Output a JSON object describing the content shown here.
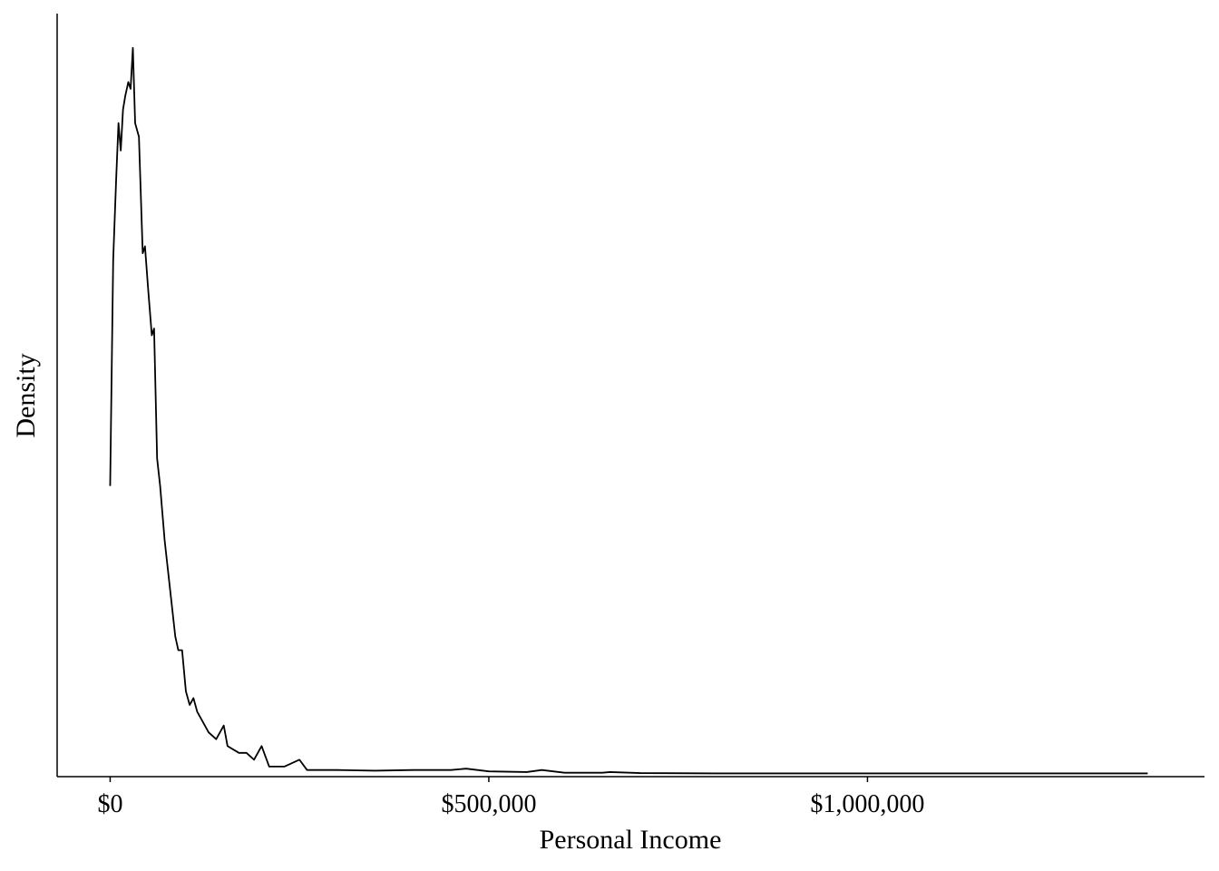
{
  "chart_data": {
    "type": "line",
    "title": "",
    "xlabel": "Personal Income",
    "ylabel": "Density",
    "xlim": [
      -70000,
      1445000
    ],
    "ylim": [
      -4.7e-08,
      1.11e-05
    ],
    "x_ticks": [
      {
        "value": 0,
        "label": "$0"
      },
      {
        "value": 500000,
        "label": "$500,000"
      },
      {
        "value": 1000000,
        "label": "$1,000,000"
      }
    ],
    "y_ticks_shown": false,
    "grid": false,
    "legend": "none",
    "series": [
      {
        "values": [
          [
            0,
            4.2e-06
          ],
          [
            4000,
            7.5e-06
          ],
          [
            8000,
            8.7e-06
          ],
          [
            11000,
            9.5e-06
          ],
          [
            14000,
            9.1e-06
          ],
          [
            17000,
            9.7e-06
          ],
          [
            20000,
            9.9e-06
          ],
          [
            24000,
            1.01e-05
          ],
          [
            27000,
            1e-05
          ],
          [
            30000,
            1.06e-05
          ],
          [
            33000,
            9.5e-06
          ],
          [
            38000,
            9.3e-06
          ],
          [
            43000,
            7.6e-06
          ],
          [
            46000,
            7.7e-06
          ],
          [
            50000,
            7.1e-06
          ],
          [
            55000,
            6.4e-06
          ],
          [
            58000,
            6.5e-06
          ],
          [
            62000,
            4.6e-06
          ],
          [
            66000,
            4.2e-06
          ],
          [
            72000,
            3.4e-06
          ],
          [
            80000,
            2.6e-06
          ],
          [
            86000,
            2e-06
          ],
          [
            90000,
            1.8e-06
          ],
          [
            95000,
            1.8e-06
          ],
          [
            100000,
            1.2e-06
          ],
          [
            105000,
            1e-06
          ],
          [
            110000,
            1.1e-06
          ],
          [
            115000,
            9e-07
          ],
          [
            120000,
            8e-07
          ],
          [
            130000,
            6e-07
          ],
          [
            140000,
            5e-07
          ],
          [
            150000,
            7e-07
          ],
          [
            155000,
            4e-07
          ],
          [
            170000,
            3e-07
          ],
          [
            180000,
            3e-07
          ],
          [
            190000,
            2e-07
          ],
          [
            200000,
            4e-07
          ],
          [
            210000,
            1e-07
          ],
          [
            230000,
            1e-07
          ],
          [
            250000,
            2e-07
          ],
          [
            260000,
            5e-08
          ],
          [
            300000,
            5e-08
          ],
          [
            350000,
            4e-08
          ],
          [
            400000,
            5e-08
          ],
          [
            450000,
            5e-08
          ],
          [
            470000,
            7e-08
          ],
          [
            500000,
            3e-08
          ],
          [
            550000,
            2e-08
          ],
          [
            570000,
            5e-08
          ],
          [
            600000,
            1e-08
          ],
          [
            650000,
            1e-08
          ],
          [
            660000,
            2e-08
          ],
          [
            700000,
            5e-09
          ],
          [
            800000,
            0.0
          ],
          [
            1000000,
            0.0
          ],
          [
            1370000,
            0.0
          ]
        ]
      }
    ]
  }
}
